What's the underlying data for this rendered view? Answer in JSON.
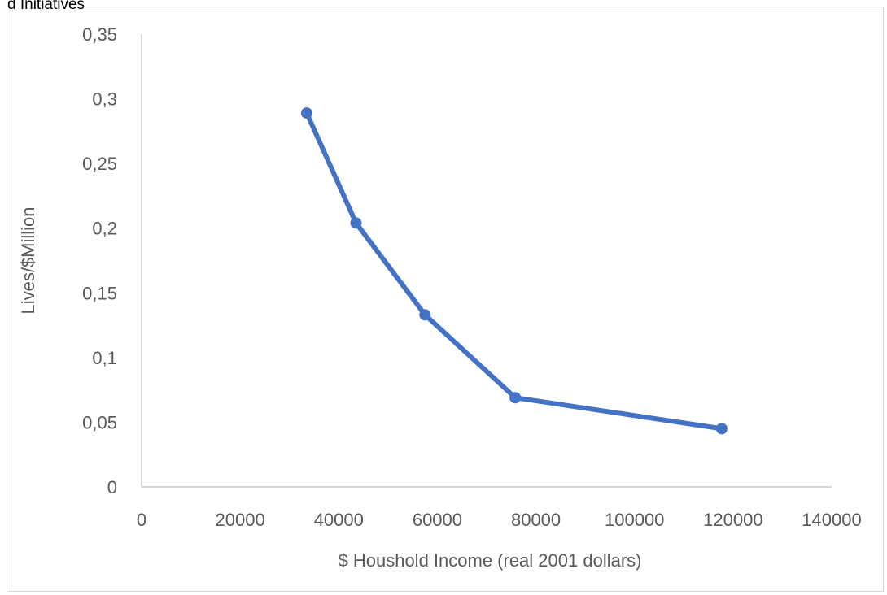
{
  "clipped_header_text": "d Initiatives",
  "chart_data": {
    "type": "line",
    "title": "",
    "xlabel": "$ Houshold Income (real 2001 dollars)",
    "ylabel": "Lives/$Million",
    "xlim": [
      0,
      140000
    ],
    "ylim": [
      0,
      0.35
    ],
    "x_ticks": [
      0,
      20000,
      40000,
      60000,
      80000,
      100000,
      120000,
      140000
    ],
    "x_tick_labels": [
      "0",
      "20000",
      "40000",
      "60000",
      "80000",
      "100000",
      "120000",
      "140000"
    ],
    "y_ticks": [
      0,
      0.05,
      0.1,
      0.15,
      0.2,
      0.25,
      0.3,
      0.35
    ],
    "y_tick_labels": [
      "0",
      "0,05",
      "0,1",
      "0,15",
      "0,2",
      "0,25",
      "0,3",
      "0,35"
    ],
    "grid": false,
    "legend": "none",
    "series": [
      {
        "color": "#4472c4",
        "marker": "circle",
        "x": [
          33500,
          43500,
          57500,
          75800,
          117700
        ],
        "y": [
          0.289,
          0.204,
          0.133,
          0.069,
          0.045
        ]
      }
    ]
  }
}
